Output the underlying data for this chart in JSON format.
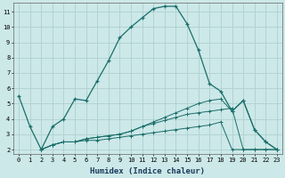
{
  "background_color": "#cce8e8",
  "grid_color": "#b0d0d0",
  "line_color": "#1a6e6a",
  "xlabel": "Humidex (Indice chaleur)",
  "xlim": [
    -0.5,
    23.5
  ],
  "ylim": [
    1.7,
    11.6
  ],
  "xticks": [
    0,
    1,
    2,
    3,
    4,
    5,
    6,
    7,
    8,
    9,
    10,
    11,
    12,
    13,
    14,
    15,
    16,
    17,
    18,
    19,
    20,
    21,
    22,
    23
  ],
  "yticks": [
    2,
    3,
    4,
    5,
    6,
    7,
    8,
    9,
    10,
    11
  ],
  "series1_x": [
    0,
    1,
    2,
    3,
    4,
    5,
    6,
    7,
    8,
    9,
    10,
    11,
    12,
    13,
    14,
    15,
    16,
    17,
    18,
    19,
    20,
    21,
    22,
    23
  ],
  "series1_y": [
    5.5,
    3.5,
    2.0,
    3.5,
    4.0,
    5.3,
    5.2,
    6.5,
    7.8,
    9.3,
    10.0,
    10.6,
    11.2,
    11.35,
    11.35,
    10.2,
    8.5,
    6.3,
    5.8,
    4.5,
    5.2,
    3.3,
    2.5,
    2.0
  ],
  "series2_x": [
    2,
    3,
    4,
    5,
    6,
    7,
    8,
    9,
    10,
    11,
    12,
    13,
    14,
    15,
    16,
    17,
    18,
    19,
    20,
    21,
    22,
    23
  ],
  "series2_y": [
    2.0,
    2.3,
    2.5,
    2.5,
    2.6,
    2.6,
    2.7,
    2.8,
    2.9,
    3.0,
    3.1,
    3.2,
    3.3,
    3.4,
    3.5,
    3.6,
    3.8,
    2.0,
    2.0,
    2.0,
    2.0,
    2.0
  ],
  "series3_x": [
    2,
    3,
    4,
    5,
    6,
    7,
    8,
    9,
    10,
    11,
    12,
    13,
    14,
    15,
    16,
    17,
    18,
    19,
    20,
    21,
    22,
    23
  ],
  "series3_y": [
    2.0,
    2.3,
    2.5,
    2.5,
    2.7,
    2.8,
    2.9,
    3.0,
    3.2,
    3.5,
    3.7,
    3.9,
    4.1,
    4.3,
    4.4,
    4.5,
    4.6,
    4.7,
    2.0,
    2.0,
    2.0,
    2.0
  ],
  "series4_x": [
    2,
    3,
    4,
    5,
    6,
    7,
    8,
    9,
    10,
    11,
    12,
    13,
    14,
    15,
    16,
    17,
    18,
    19,
    20,
    21,
    22,
    23
  ],
  "series4_y": [
    2.0,
    2.3,
    2.5,
    2.5,
    2.7,
    2.8,
    2.9,
    3.0,
    3.2,
    3.5,
    3.8,
    4.1,
    4.4,
    4.7,
    5.0,
    5.2,
    5.3,
    4.5,
    5.2,
    3.3,
    2.5,
    2.0
  ]
}
